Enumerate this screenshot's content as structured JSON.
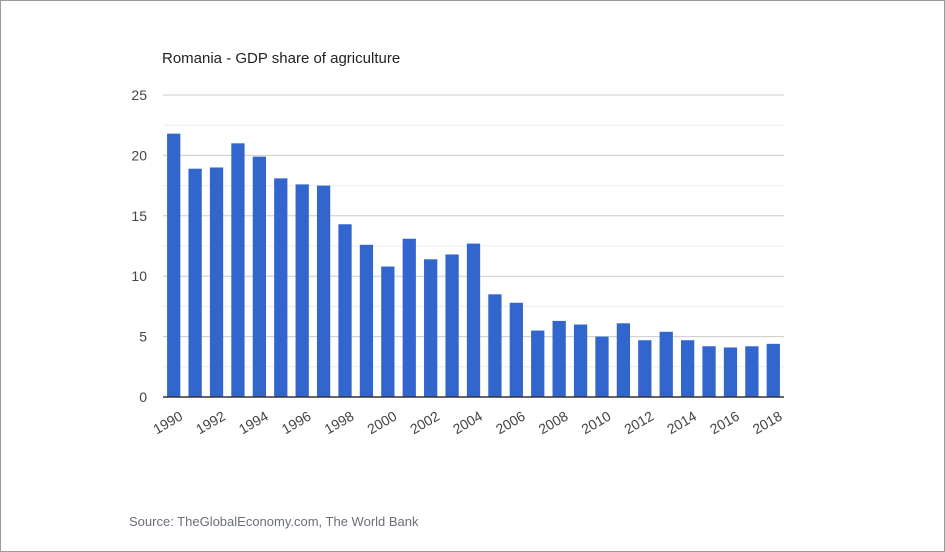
{
  "chart_data": {
    "type": "bar",
    "title": "Romania - GDP share of agriculture",
    "xlabel": "",
    "ylabel": "",
    "ylim": [
      0,
      25
    ],
    "yticks": [
      0,
      5,
      10,
      15,
      20,
      25
    ],
    "grid": true,
    "legend": "none",
    "categories": [
      "1990",
      "1991",
      "1992",
      "1993",
      "1994",
      "1995",
      "1996",
      "1997",
      "1998",
      "1999",
      "2000",
      "2001",
      "2002",
      "2003",
      "2004",
      "2005",
      "2006",
      "2007",
      "2008",
      "2009",
      "2010",
      "2011",
      "2012",
      "2013",
      "2014",
      "2015",
      "2016",
      "2017",
      "2018"
    ],
    "xtick_labels": [
      "1990",
      "1992",
      "1994",
      "1996",
      "1998",
      "2000",
      "2002",
      "2004",
      "2006",
      "2008",
      "2010",
      "2012",
      "2014",
      "2016",
      "2018"
    ],
    "values": [
      21.8,
      18.9,
      19.0,
      21.0,
      19.9,
      18.1,
      17.6,
      17.5,
      14.3,
      12.6,
      10.8,
      13.1,
      11.4,
      11.8,
      12.7,
      8.5,
      7.8,
      5.5,
      6.3,
      6.0,
      5.0,
      6.1,
      4.7,
      5.4,
      4.7,
      4.2,
      4.1,
      4.2,
      4.4
    ],
    "bar_color": "#3366cc",
    "source": "Source: TheGlobalEconomy.com, The World Bank"
  }
}
